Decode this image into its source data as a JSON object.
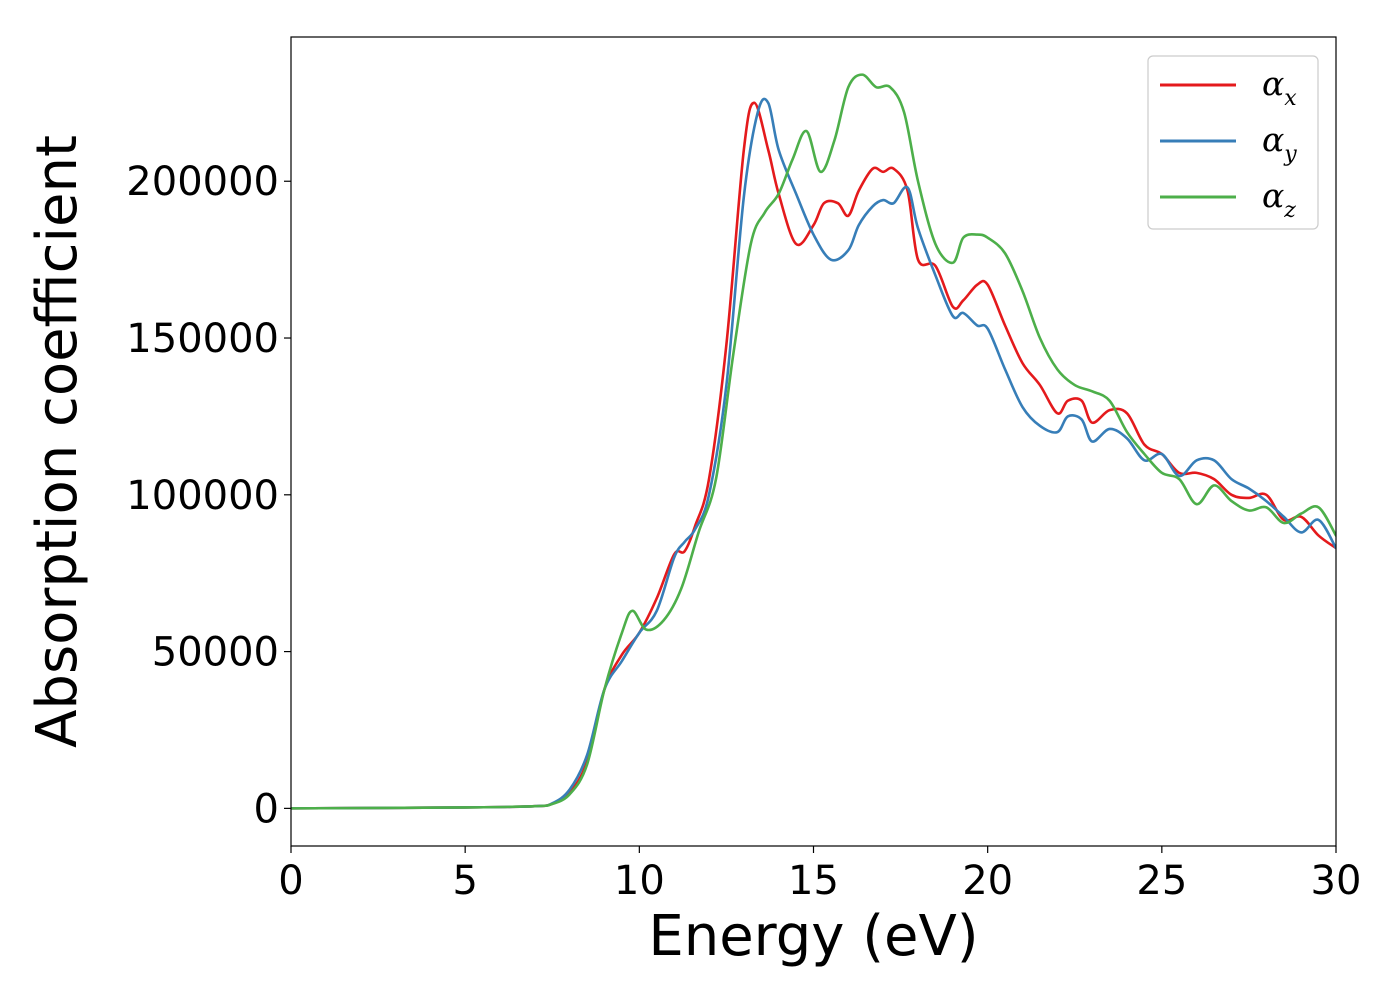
{
  "chart_data": {
    "type": "line",
    "xlabel": "Energy (eV)",
    "ylabel": "Absorption coefficient",
    "xlim": [
      0,
      30
    ],
    "ylim": [
      -12000,
      246000
    ],
    "xticks": [
      0,
      5,
      10,
      15,
      20,
      25,
      30
    ],
    "yticks": [
      0,
      50000,
      100000,
      150000,
      200000
    ],
    "xtick_labels": [
      "0",
      "5",
      "10",
      "15",
      "20",
      "25",
      "30"
    ],
    "ytick_labels": [
      "0",
      "50000",
      "100000",
      "150000",
      "200000"
    ],
    "grid": false,
    "legend_position": "top-right",
    "series": [
      {
        "name": "α",
        "subscript": "x",
        "color": "#e41a1c",
        "x": [
          0,
          5,
          7,
          7.5,
          8,
          8.5,
          9,
          9.5,
          10,
          10.5,
          11,
          11.3,
          11.6,
          12,
          12.5,
          13,
          13.3,
          13.7,
          14,
          14.5,
          15,
          15.3,
          15.7,
          16,
          16.3,
          16.7,
          17,
          17.3,
          17.7,
          18,
          18.5,
          19,
          19.3,
          19.7,
          20,
          20.5,
          21,
          21.5,
          22,
          22.3,
          22.7,
          23,
          23.5,
          24,
          24.5,
          25,
          25.5,
          26,
          26.5,
          27,
          27.5,
          28,
          28.5,
          29,
          29.5,
          30
        ],
        "y": [
          0,
          300,
          700,
          1500,
          5000,
          15000,
          38000,
          49000,
          56000,
          67000,
          81000,
          82000,
          90000,
          105000,
          148000,
          210000,
          225000,
          210000,
          196000,
          180000,
          186000,
          193000,
          193000,
          189000,
          197000,
          204000,
          203000,
          204000,
          197000,
          175000,
          173000,
          160000,
          162000,
          167000,
          167000,
          154000,
          142000,
          135000,
          126000,
          130000,
          130000,
          123000,
          127000,
          126000,
          116000,
          113000,
          107000,
          107000,
          105000,
          100000,
          99000,
          100000,
          92000,
          93000,
          87000,
          83000
        ]
      },
      {
        "name": "α",
        "subscript": "y",
        "color": "#377eb8",
        "x": [
          0,
          5,
          7,
          7.5,
          8,
          8.5,
          9,
          9.5,
          10,
          10.5,
          11,
          11.3,
          11.6,
          12,
          12.5,
          13,
          13.4,
          13.7,
          14,
          14.5,
          15,
          15.5,
          16,
          16.3,
          16.7,
          17,
          17.3,
          17.7,
          18,
          18.5,
          19,
          19.3,
          19.7,
          20,
          20.5,
          21,
          21.5,
          22,
          22.3,
          22.7,
          23,
          23.5,
          24,
          24.5,
          25,
          25.5,
          26,
          26.5,
          27,
          27.5,
          28,
          28.5,
          29,
          29.5,
          30
        ],
        "y": [
          0,
          300,
          700,
          1600,
          6000,
          17000,
          38000,
          47000,
          56000,
          63000,
          80000,
          85000,
          89000,
          100000,
          135000,
          195000,
          222000,
          225000,
          210000,
          196000,
          183000,
          175000,
          178000,
          186000,
          192000,
          194000,
          193000,
          198000,
          185000,
          170000,
          157000,
          158000,
          154000,
          153000,
          140000,
          128000,
          122000,
          120000,
          125000,
          124000,
          117000,
          121000,
          118000,
          111000,
          113000,
          106000,
          111000,
          111000,
          105000,
          102000,
          98000,
          93000,
          88000,
          92000,
          83000
        ]
      },
      {
        "name": "α",
        "subscript": "z",
        "color": "#4daf4a",
        "x": [
          0,
          5,
          7,
          7.5,
          8,
          8.5,
          9,
          9.5,
          9.8,
          10.2,
          10.7,
          11.2,
          11.7,
          12.2,
          12.7,
          13.2,
          13.6,
          14,
          14.4,
          14.8,
          15.2,
          15.6,
          16,
          16.4,
          16.8,
          17.2,
          17.6,
          18,
          18.5,
          19,
          19.3,
          19.7,
          20,
          20.5,
          21,
          21.5,
          22,
          22.5,
          23,
          23.5,
          24,
          24.5,
          25,
          25.5,
          26,
          26.5,
          27,
          27.5,
          28,
          28.5,
          29,
          29.5,
          30
        ],
        "y": [
          0,
          300,
          700,
          1400,
          4500,
          14000,
          38000,
          56000,
          63000,
          57000,
          60000,
          70000,
          88000,
          105000,
          145000,
          180000,
          190000,
          196000,
          207000,
          216000,
          203000,
          213000,
          230000,
          234000,
          230000,
          230000,
          222000,
          200000,
          180000,
          174000,
          182000,
          183000,
          182000,
          177000,
          165000,
          150000,
          140000,
          135000,
          133000,
          130000,
          120000,
          113000,
          107000,
          105000,
          97000,
          103000,
          98000,
          95000,
          96000,
          91000,
          94000,
          96000,
          87000
        ]
      }
    ]
  }
}
